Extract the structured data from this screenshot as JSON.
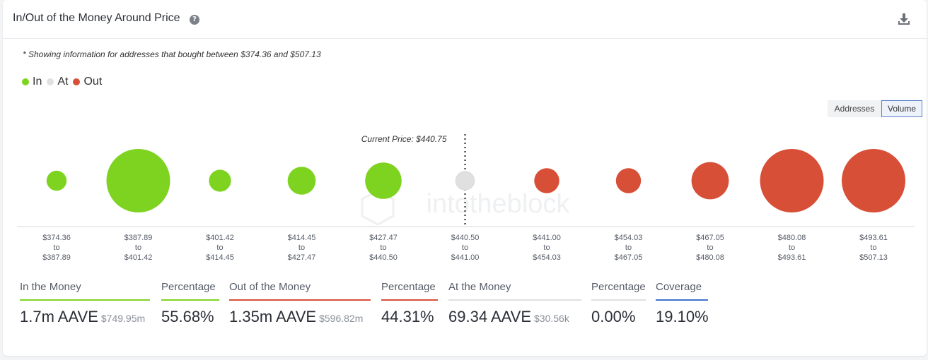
{
  "header": {
    "title": "In/Out of the Money Around Price",
    "help_glyph": "?"
  },
  "note": "* Showing information for addresses that bought between $374.36 and $507.13",
  "legend": [
    {
      "label": "In",
      "color": "#7ed321"
    },
    {
      "label": "At",
      "color": "#e0e0e0"
    },
    {
      "label": "Out",
      "color": "#d84f37"
    }
  ],
  "toggle": {
    "addresses_label": "Addresses",
    "volume_label": "Volume",
    "selected": "Volume"
  },
  "chart_data": {
    "type": "scatter",
    "title": "",
    "current_price_label": "Current Price: $440.75",
    "current_price_position_after_bucket": 5,
    "watermark": "intotheblock",
    "colors": {
      "In": "#7ed321",
      "At": "#e0e0e0",
      "Out": "#d84f37"
    },
    "buckets": [
      {
        "from": "$374.36",
        "to": "$387.89",
        "status": "In",
        "relative_volume": 0.12
      },
      {
        "from": "$387.89",
        "to": "$401.42",
        "status": "In",
        "relative_volume": 1.0
      },
      {
        "from": "$401.42",
        "to": "$414.45",
        "status": "In",
        "relative_volume": 0.16
      },
      {
        "from": "$414.45",
        "to": "$427.47",
        "status": "In",
        "relative_volume": 0.28
      },
      {
        "from": "$427.47",
        "to": "$440.50",
        "status": "In",
        "relative_volume": 0.45
      },
      {
        "from": "$440.50",
        "to": "$441.00",
        "status": "At",
        "relative_volume": 0.09
      },
      {
        "from": "$441.00",
        "to": "$454.03",
        "status": "Out",
        "relative_volume": 0.22
      },
      {
        "from": "$454.03",
        "to": "$467.05",
        "status": "Out",
        "relative_volume": 0.22
      },
      {
        "from": "$467.05",
        "to": "$480.08",
        "status": "Out",
        "relative_volume": 0.47
      },
      {
        "from": "$480.08",
        "to": "$493.61",
        "status": "Out",
        "relative_volume": 1.0
      },
      {
        "from": "$493.61",
        "to": "$507.13",
        "status": "Out",
        "relative_volume": 1.0
      }
    ],
    "range_connector": "to"
  },
  "stats": [
    {
      "label": "In the Money",
      "value": "1.7m AAVE",
      "sub": "$749.95m",
      "color": "#7ed321"
    },
    {
      "label": "Percentage",
      "value": "55.68%",
      "sub": "",
      "color": "#7ed321"
    },
    {
      "label": "Out of the Money",
      "value": "1.35m AAVE",
      "sub": "$596.82m",
      "color": "#d84f37"
    },
    {
      "label": "Percentage",
      "value": "44.31%",
      "sub": "",
      "color": "#d84f37"
    },
    {
      "label": "At the Money",
      "value": "69.34 AAVE",
      "sub": "$30.56k",
      "color": "#e0e0e0"
    },
    {
      "label": "Percentage",
      "value": "0.00%",
      "sub": "",
      "color": "#e0e0e0"
    },
    {
      "label": "Coverage",
      "value": "19.10%",
      "sub": "",
      "color": "#3f74d6"
    }
  ]
}
